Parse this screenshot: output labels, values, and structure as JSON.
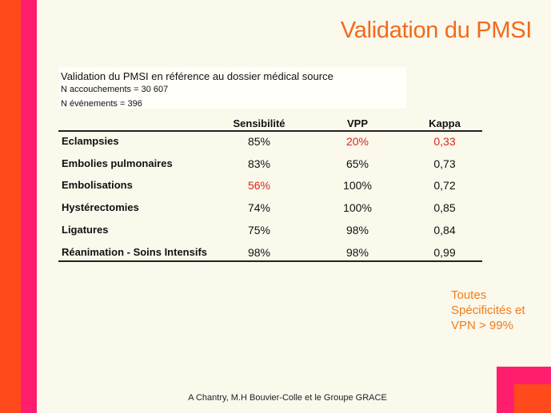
{
  "title": "Validation du PMSI",
  "header": {
    "line1": "Validation du PMSI en référence au dossier médical source",
    "line2": "N accouchements = 30 607",
    "line3": "N événements = 396"
  },
  "table": {
    "columns": [
      "Sensibilité",
      "VPP",
      "Kappa"
    ],
    "rows": [
      {
        "label": "Eclampsies",
        "values": [
          "85%",
          "20%",
          "0,33"
        ]
      },
      {
        "label": "Embolies pulmonaires",
        "values": [
          "83%",
          "65%",
          "0,73"
        ]
      },
      {
        "label": "Embolisations",
        "values": [
          "56%",
          "100%",
          "0,72"
        ]
      },
      {
        "label": "Hystérectomies",
        "values": [
          "74%",
          "100%",
          "0,85"
        ]
      },
      {
        "label": "Ligatures",
        "values": [
          "75%",
          "98%",
          "0,84"
        ]
      },
      {
        "label": "Réanimation - Soins Intensifs",
        "values": [
          "98%",
          "98%",
          "0,99"
        ]
      }
    ]
  },
  "note": "Toutes Spécificités et VPN > 99%",
  "footer": "A Chantry, M.H Bouvier-Colle et le Groupe GRACE",
  "colors": {
    "accent_orange": "#ff4a1c",
    "accent_pink": "#ff1e6e",
    "title_orange": "#f26a1b",
    "highlight_red": "#d8261c",
    "background": "#fbf8ec"
  }
}
